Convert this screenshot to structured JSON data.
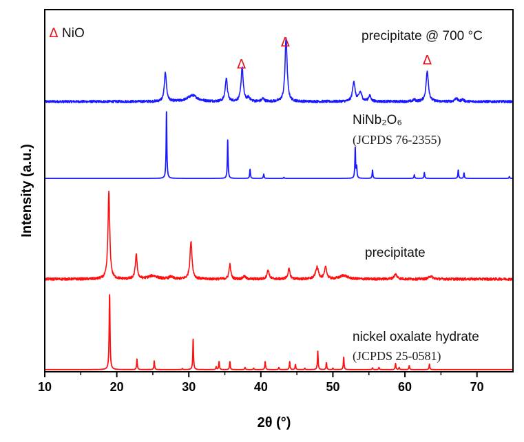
{
  "chart_data": {
    "type": "line",
    "title": "",
    "xlabel": "2θ (°)",
    "ylabel": "Intensity (a.u.)",
    "xlim": [
      10,
      75
    ],
    "ylim": [
      0,
      100
    ],
    "xticks": [
      10,
      20,
      30,
      40,
      50,
      60,
      70
    ],
    "xtick_labels": [
      "10",
      "20",
      "30",
      "40",
      "50",
      "60",
      "70"
    ],
    "minor_xticks": [
      15,
      25,
      35,
      45,
      55,
      65
    ],
    "grid": false,
    "colors": {
      "blue": "#1a1aff",
      "red": "#ff1010",
      "marker": "#e8141b"
    },
    "series": [
      {
        "name": "precipitate @ 700 °C",
        "color": "#1a1aff",
        "baseline": 74.6,
        "noise": 0.35,
        "peaks": [
          [
            26.75,
            8.0,
            0.35
          ],
          [
            30.5,
            1.7,
            1.6
          ],
          [
            35.2,
            6.4,
            0.35
          ],
          [
            37.4,
            9.4,
            0.35
          ],
          [
            38.3,
            1.0,
            0.5
          ],
          [
            40.3,
            0.8,
            0.4
          ],
          [
            43.5,
            17.6,
            0.35
          ],
          [
            52.9,
            5.5,
            0.4
          ],
          [
            53.8,
            2.5,
            0.5
          ],
          [
            55.1,
            1.6,
            0.4
          ],
          [
            61.3,
            0.5,
            0.4
          ],
          [
            63.1,
            8.4,
            0.4
          ],
          [
            67.1,
            1.0,
            0.4
          ],
          [
            68.0,
            0.6,
            0.4
          ]
        ]
      },
      {
        "name": "NiNb₂O₆ (JCPDS 76-2355)",
        "color": "#1a1aff",
        "baseline": 53.4,
        "noise": 0,
        "peaks": [
          [
            26.9,
            18.4,
            0.12
          ],
          [
            35.4,
            10.6,
            0.12
          ],
          [
            38.5,
            2.5,
            0.12
          ],
          [
            40.4,
            1.2,
            0.12
          ],
          [
            43.2,
            0.3,
            0.12
          ],
          [
            53.1,
            8.4,
            0.12
          ],
          [
            53.3,
            3.0,
            0.12
          ],
          [
            55.5,
            2.3,
            0.12
          ],
          [
            61.3,
            1.0,
            0.12
          ],
          [
            62.7,
            1.6,
            0.12
          ],
          [
            67.4,
            2.3,
            0.12
          ],
          [
            68.2,
            1.5,
            0.12
          ],
          [
            74.5,
            0.5,
            0.12
          ]
        ]
      },
      {
        "name": "precipitate",
        "color": "#ff1010",
        "baseline": 25.6,
        "noise": 0.35,
        "peaks": [
          [
            18.9,
            24.3,
            0.3
          ],
          [
            22.7,
            6.8,
            0.3
          ],
          [
            25.0,
            0.9,
            1.5
          ],
          [
            27.5,
            0.6,
            0.6
          ],
          [
            30.3,
            10.3,
            0.35
          ],
          [
            35.7,
            4.0,
            0.3
          ],
          [
            37.7,
            0.8,
            0.4
          ],
          [
            41.0,
            2.5,
            0.35
          ],
          [
            43.9,
            2.7,
            0.35
          ],
          [
            47.8,
            3.2,
            0.5
          ],
          [
            49.0,
            3.3,
            0.35
          ],
          [
            51.5,
            1.0,
            1.2
          ],
          [
            58.7,
            1.3,
            0.5
          ],
          [
            63.6,
            0.8,
            0.6
          ]
        ]
      },
      {
        "name": "nickel oxalate hydrate (JCPDS 25-0581)",
        "color": "#ff1010",
        "baseline": 0.6,
        "noise": 0,
        "peaks": [
          [
            19.0,
            20.7,
            0.14
          ],
          [
            22.8,
            2.9,
            0.12
          ],
          [
            25.2,
            2.4,
            0.12
          ],
          [
            29.1,
            0.3,
            0.12
          ],
          [
            30.6,
            8.4,
            0.12
          ],
          [
            33.8,
            0.8,
            0.12
          ],
          [
            34.2,
            2.2,
            0.12
          ],
          [
            35.7,
            2.2,
            0.12
          ],
          [
            37.8,
            0.6,
            0.12
          ],
          [
            39.0,
            0.4,
            0.12
          ],
          [
            40.6,
            2.2,
            0.12
          ],
          [
            42.5,
            0.6,
            0.12
          ],
          [
            44.0,
            2.2,
            0.12
          ],
          [
            44.8,
            1.4,
            0.12
          ],
          [
            46.1,
            0.4,
            0.12
          ],
          [
            47.9,
            5.1,
            0.12
          ],
          [
            49.1,
            1.9,
            0.12
          ],
          [
            50.0,
            0.4,
            0.12
          ],
          [
            51.5,
            3.4,
            0.12
          ],
          [
            55.5,
            0.5,
            0.12
          ],
          [
            56.4,
            0.6,
            0.12
          ],
          [
            58.7,
            1.7,
            0.12
          ],
          [
            59.2,
            0.6,
            0.12
          ],
          [
            60.6,
            1.1,
            0.12
          ],
          [
            63.4,
            1.5,
            0.12
          ]
        ]
      }
    ],
    "annotations": {
      "legend_marker": "Δ",
      "legend_text": "NiO",
      "label_700": "precipitate @ 700 °C",
      "label_ref_nb": "NiNb₂O₆",
      "label_ref_nb_jcpds": "(JCPDS 76-2355)",
      "label_precipitate": "precipitate",
      "label_ref_ox": "nickel oxalate hydrate",
      "label_ref_ox_jcpds": "(JCPDS 25-0581)",
      "nio_markers": [
        {
          "x": 37.3,
          "symbol": "Δ"
        },
        {
          "x": 43.4,
          "symbol": "Δ"
        },
        {
          "x": 63.1,
          "symbol": "Δ"
        }
      ]
    }
  }
}
